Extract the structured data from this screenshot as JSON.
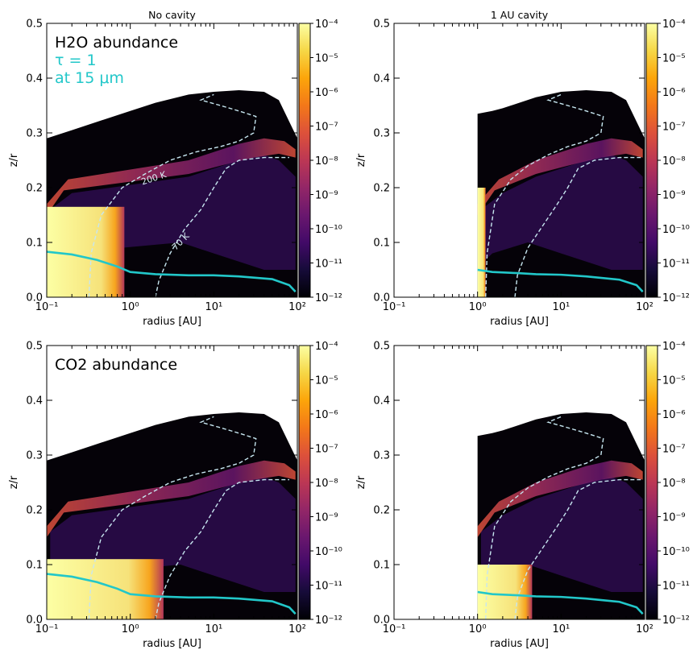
{
  "chart_data": [
    {
      "type": "heatmap",
      "title": "No cavity",
      "species": "H2O",
      "annotation": "H2O abundance",
      "tau_annotation": [
        "τ = 1",
        "at 15 μm"
      ],
      "xlabel": "radius [AU]",
      "ylabel": "z/r",
      "xscale": "log",
      "xlim": [
        0.1,
        100
      ],
      "ylim": [
        0.0,
        0.5
      ],
      "xticks": [
        "10⁻¹",
        "10⁰",
        "10¹",
        "10²"
      ],
      "yticks": [
        "0.0",
        "0.1",
        "0.2",
        "0.3",
        "0.4",
        "0.5"
      ],
      "colorbar": {
        "scale": "log",
        "range": [
          1e-12,
          0.0001
        ],
        "cmap": "inferno",
        "ticks": [
          "10⁻⁴",
          "10⁻⁵",
          "10⁻⁶",
          "10⁻⁷",
          "10⁻⁸",
          "10⁻⁹",
          "10⁻¹⁰",
          "10⁻¹¹",
          "10⁻¹²"
        ]
      },
      "inner_radius": 0.1,
      "surface_zr": {
        "r": [
          0.1,
          0.2,
          0.5,
          1,
          2,
          5,
          10,
          20,
          40,
          60,
          100
        ],
        "zr": [
          0.29,
          0.305,
          0.325,
          0.34,
          0.355,
          0.37,
          0.375,
          0.378,
          0.375,
          0.36,
          0.29
        ]
      },
      "tau1_15um": {
        "r": [
          0.1,
          0.2,
          0.4,
          0.7,
          1,
          2,
          5,
          10,
          20,
          50,
          80,
          95
        ],
        "zr": [
          0.083,
          0.078,
          0.068,
          0.056,
          0.046,
          0.042,
          0.04,
          0.04,
          0.038,
          0.033,
          0.022,
          0.01
        ]
      },
      "contour_200K": {
        "label": "200 K",
        "r": [
          0.32,
          0.34,
          0.45,
          0.8,
          1.5,
          3,
          6,
          12,
          20,
          30,
          32,
          20,
          12,
          7,
          10
        ],
        "zr": [
          0.0,
          0.08,
          0.15,
          0.2,
          0.225,
          0.25,
          0.265,
          0.275,
          0.285,
          0.3,
          0.33,
          0.34,
          0.35,
          0.36,
          0.37
        ]
      },
      "contour_70K": {
        "label": "70 K",
        "r": [
          2.0,
          2.2,
          3,
          4.5,
          7,
          10,
          14,
          20,
          40,
          80
        ],
        "zr": [
          0.0,
          0.03,
          0.08,
          0.125,
          0.16,
          0.2,
          0.235,
          0.25,
          0.255,
          0.255
        ]
      },
      "hot_region_zr_max": 0.165,
      "hot_region_r_max": 0.85,
      "colors": {
        "contour": "#c7e6f0",
        "tau": "#22c7c9",
        "annotation": "#000000"
      }
    },
    {
      "type": "heatmap",
      "title": "1 AU cavity",
      "species": "H2O",
      "xlabel": "radius [AU]",
      "ylabel": "z/r",
      "xscale": "log",
      "xlim": [
        0.1,
        100
      ],
      "ylim": [
        0.0,
        0.5
      ],
      "xticks": [
        "10⁻¹",
        "10⁰",
        "10¹",
        "10²"
      ],
      "yticks": [
        "0.0",
        "0.1",
        "0.2",
        "0.3",
        "0.4",
        "0.5"
      ],
      "colorbar": {
        "scale": "log",
        "range": [
          1e-12,
          0.0001
        ],
        "cmap": "inferno",
        "ticks": [
          "10⁻⁴",
          "10⁻⁵",
          "10⁻⁶",
          "10⁻⁷",
          "10⁻⁸",
          "10⁻⁹",
          "10⁻¹⁰",
          "10⁻¹¹",
          "10⁻¹²"
        ]
      },
      "inner_radius": 1.0,
      "surface_zr": {
        "r": [
          1.0,
          1.5,
          2,
          5,
          10,
          20,
          40,
          60,
          100
        ],
        "zr": [
          0.335,
          0.34,
          0.345,
          0.365,
          0.375,
          0.378,
          0.375,
          0.36,
          0.29
        ]
      },
      "tau1_15um": {
        "r": [
          1.0,
          1.5,
          3,
          5,
          10,
          20,
          50,
          80,
          95
        ],
        "zr": [
          0.05,
          0.046,
          0.044,
          0.042,
          0.041,
          0.038,
          0.032,
          0.022,
          0.01
        ]
      },
      "contour_200K": {
        "r": [
          1.25,
          1.3,
          1.6,
          2.5,
          4,
          7,
          12,
          20,
          30,
          32,
          20,
          12,
          7,
          10
        ],
        "zr": [
          0.0,
          0.08,
          0.17,
          0.215,
          0.24,
          0.26,
          0.275,
          0.285,
          0.3,
          0.33,
          0.34,
          0.35,
          0.36,
          0.37
        ]
      },
      "contour_70K": {
        "r": [
          2.8,
          3,
          4,
          6,
          9,
          12,
          16,
          25,
          50,
          90
        ],
        "zr": [
          0.0,
          0.04,
          0.09,
          0.13,
          0.17,
          0.2,
          0.235,
          0.25,
          0.255,
          0.255
        ]
      },
      "hot_region_zr_max": 0.2,
      "hot_region_r_max": 1.25,
      "colors": {
        "contour": "#c7e6f0",
        "tau": "#22c7c9"
      }
    },
    {
      "type": "heatmap",
      "title": "",
      "species": "CO2",
      "annotation": "CO2 abundance",
      "xlabel": "radius [AU]",
      "ylabel": "z/r",
      "xscale": "log",
      "xlim": [
        0.1,
        100
      ],
      "ylim": [
        0.0,
        0.5
      ],
      "xticks": [
        "10⁻¹",
        "10⁰",
        "10¹",
        "10²"
      ],
      "yticks": [
        "0.0",
        "0.1",
        "0.2",
        "0.3",
        "0.4",
        "0.5"
      ],
      "colorbar": {
        "scale": "log",
        "range": [
          1e-12,
          0.0001
        ],
        "cmap": "inferno",
        "ticks": [
          "10⁻⁴",
          "10⁻⁵",
          "10⁻⁶",
          "10⁻⁷",
          "10⁻⁸",
          "10⁻⁹",
          "10⁻¹⁰",
          "10⁻¹¹",
          "10⁻¹²"
        ]
      },
      "inner_radius": 0.1,
      "surface_zr": {
        "r": [
          0.1,
          0.2,
          0.5,
          1,
          2,
          5,
          10,
          20,
          40,
          60,
          100
        ],
        "zr": [
          0.29,
          0.305,
          0.325,
          0.34,
          0.355,
          0.37,
          0.375,
          0.378,
          0.375,
          0.36,
          0.29
        ]
      },
      "tau1_15um": {
        "r": [
          0.1,
          0.2,
          0.4,
          0.7,
          1,
          2,
          5,
          10,
          20,
          50,
          80,
          95
        ],
        "zr": [
          0.083,
          0.078,
          0.068,
          0.056,
          0.046,
          0.042,
          0.04,
          0.04,
          0.038,
          0.033,
          0.022,
          0.01
        ]
      },
      "contour_200K": {
        "r": [
          0.32,
          0.34,
          0.45,
          0.8,
          1.5,
          3,
          6,
          12,
          20,
          30,
          32,
          20,
          12,
          7,
          10
        ],
        "zr": [
          0.0,
          0.08,
          0.15,
          0.2,
          0.225,
          0.25,
          0.265,
          0.275,
          0.285,
          0.3,
          0.33,
          0.34,
          0.35,
          0.36,
          0.37
        ]
      },
      "contour_70K": {
        "r": [
          2.0,
          2.2,
          3,
          4.5,
          7,
          10,
          14,
          20,
          40,
          80
        ],
        "zr": [
          0.0,
          0.03,
          0.08,
          0.125,
          0.16,
          0.2,
          0.235,
          0.25,
          0.255,
          0.255
        ]
      },
      "hot_region_zr_max": 0.11,
      "hot_region_r_max": 2.5,
      "colors": {
        "contour": "#c7e6f0",
        "tau": "#22c7c9",
        "annotation": "#000000"
      }
    },
    {
      "type": "heatmap",
      "title": "",
      "species": "CO2",
      "xlabel": "radius [AU]",
      "ylabel": "z/r",
      "xscale": "log",
      "xlim": [
        0.1,
        100
      ],
      "ylim": [
        0.0,
        0.5
      ],
      "xticks": [
        "10⁻¹",
        "10⁰",
        "10¹",
        "10²"
      ],
      "yticks": [
        "0.0",
        "0.1",
        "0.2",
        "0.3",
        "0.4",
        "0.5"
      ],
      "colorbar": {
        "scale": "log",
        "range": [
          1e-12,
          0.0001
        ],
        "cmap": "inferno",
        "ticks": [
          "10⁻⁴",
          "10⁻⁵",
          "10⁻⁶",
          "10⁻⁷",
          "10⁻⁸",
          "10⁻⁹",
          "10⁻¹⁰",
          "10⁻¹¹",
          "10⁻¹²"
        ]
      },
      "inner_radius": 1.0,
      "surface_zr": {
        "r": [
          1.0,
          1.5,
          2,
          5,
          10,
          20,
          40,
          60,
          100
        ],
        "zr": [
          0.335,
          0.34,
          0.345,
          0.365,
          0.375,
          0.378,
          0.375,
          0.36,
          0.29
        ]
      },
      "tau1_15um": {
        "r": [
          1.0,
          1.5,
          3,
          5,
          10,
          20,
          50,
          80,
          95
        ],
        "zr": [
          0.05,
          0.046,
          0.044,
          0.042,
          0.041,
          0.038,
          0.032,
          0.022,
          0.01
        ]
      },
      "contour_200K": {
        "r": [
          1.25,
          1.3,
          1.6,
          2.5,
          4,
          7,
          12,
          20,
          30,
          32,
          20,
          12,
          7,
          10
        ],
        "zr": [
          0.0,
          0.08,
          0.17,
          0.215,
          0.24,
          0.26,
          0.275,
          0.285,
          0.3,
          0.33,
          0.34,
          0.35,
          0.36,
          0.37
        ]
      },
      "contour_70K": {
        "r": [
          2.8,
          3,
          4,
          6,
          9,
          12,
          16,
          25,
          50,
          90
        ],
        "zr": [
          0.0,
          0.04,
          0.09,
          0.13,
          0.17,
          0.2,
          0.235,
          0.25,
          0.255,
          0.255
        ]
      },
      "hot_region_zr_max": 0.1,
      "hot_region_r_max": 4.5,
      "colors": {
        "contour": "#c7e6f0",
        "tau": "#22c7c9"
      }
    }
  ],
  "labels": {
    "contour_200K": "200 K",
    "contour_70K": "70 K"
  }
}
